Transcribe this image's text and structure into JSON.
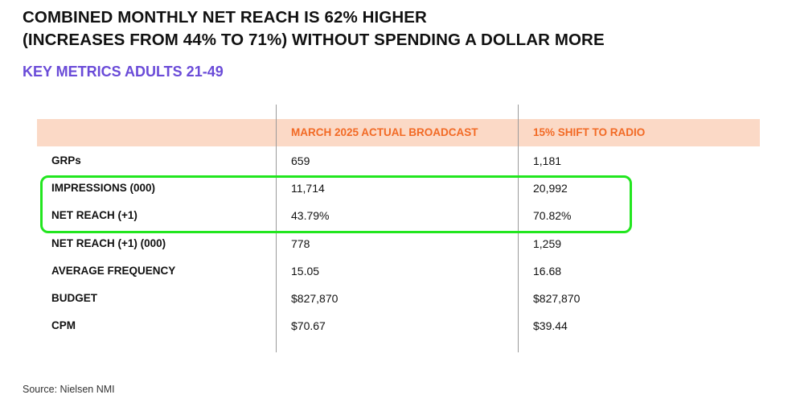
{
  "title_line1": "COMBINED MONTHLY NET REACH IS 62% HIGHER",
  "title_line2": "(INCREASES FROM 44% TO 71%) WITHOUT SPENDING A DOLLAR MORE",
  "subtitle": "KEY METRICS ADULTS 21-49",
  "source": "Source: Nielsen NMI",
  "colors": {
    "title": "#111111",
    "subtitle": "#6a4bd8",
    "header_band": "#fbd9c6",
    "header_text": "#f26a25",
    "highlight_border": "#22e61f"
  },
  "chart_data": {
    "type": "table",
    "columns": [
      "",
      "MARCH 2025 ACTUAL BROADCAST",
      "15% SHIFT TO RADIO"
    ],
    "rows": [
      {
        "metric": "GRPs",
        "broadcast": "659",
        "radio": "1,181"
      },
      {
        "metric": "IMPRESSIONS (000)",
        "broadcast": "11,714",
        "radio": "20,992"
      },
      {
        "metric": "NET REACH (+1)",
        "broadcast": "43.79%",
        "radio": "70.82%"
      },
      {
        "metric": "NET REACH (+1) (000)",
        "broadcast": "778",
        "radio": "1,259"
      },
      {
        "metric": "AVERAGE FREQUENCY",
        "broadcast": "15.05",
        "radio": "16.68"
      },
      {
        "metric": "BUDGET",
        "broadcast": "$827,870",
        "radio": "$827,870"
      },
      {
        "metric": "CPM",
        "broadcast": "$70.67",
        "radio": "$39.44"
      }
    ],
    "highlighted_rows": [
      "IMPRESSIONS (000)",
      "NET REACH (+1)"
    ]
  }
}
